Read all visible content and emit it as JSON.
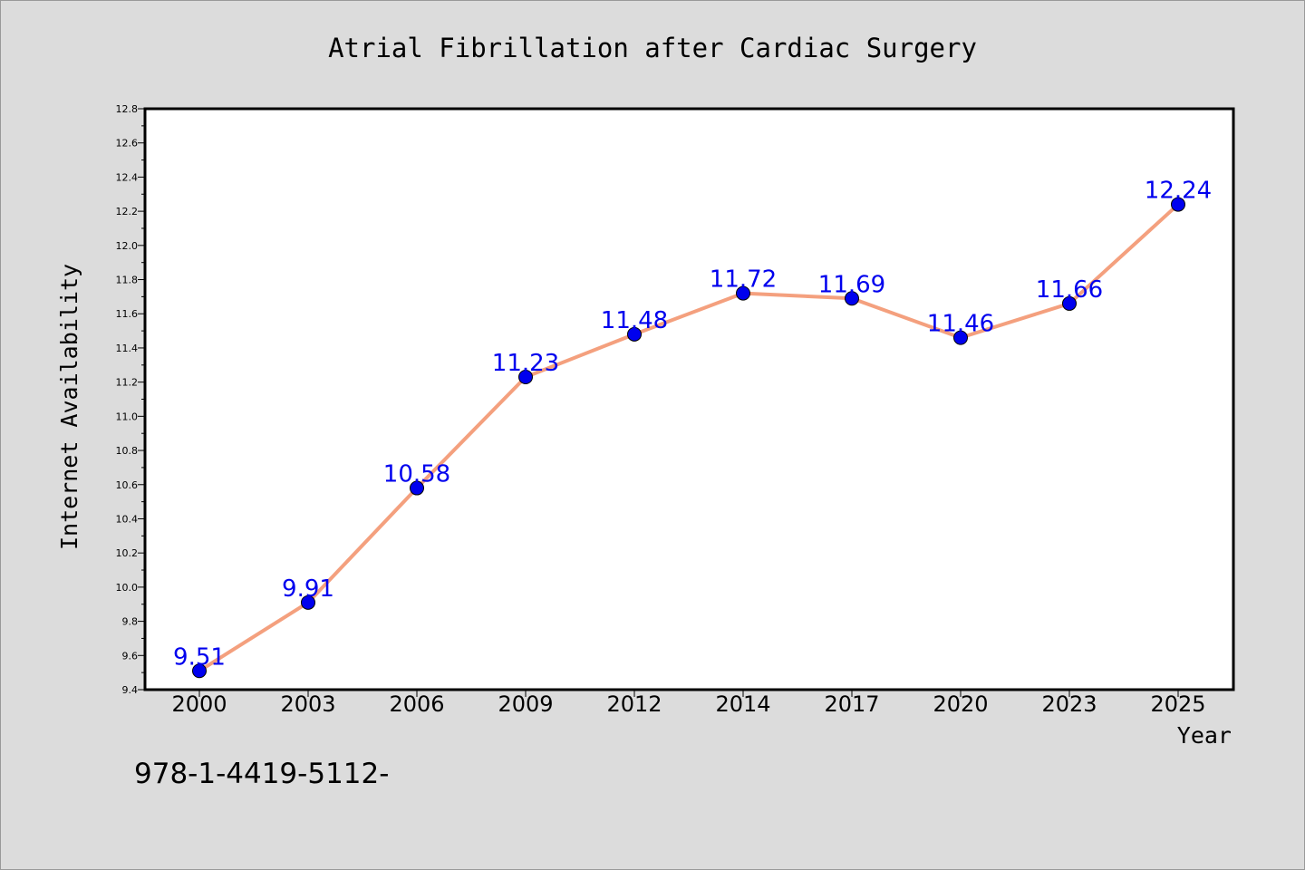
{
  "chart_data": {
    "type": "line",
    "title": "Atrial Fibrillation after Cardiac Surgery",
    "xlabel": "Year",
    "ylabel": "Internet Availability",
    "categories": [
      "2000",
      "2003",
      "2006",
      "2009",
      "2012",
      "2014",
      "2017",
      "2020",
      "2023",
      "2025"
    ],
    "series": [
      {
        "values": [
          9.51,
          9.91,
          10.58,
          11.23,
          11.48,
          11.72,
          11.69,
          11.46,
          11.66,
          12.24
        ],
        "line_color": "#f4a07e",
        "marker_color": "#0000ee",
        "label_color": "#0000ee"
      }
    ],
    "data_labels": [
      "9.51",
      "9.91",
      "10.58",
      "11.23",
      "11.48",
      "11.72",
      "11.69",
      "11.46",
      "11.66",
      "12.24"
    ],
    "ylim": [
      9.4,
      12.8
    ],
    "yticks": [
      "9.4",
      "9.6",
      "9.8",
      "10.0",
      "10.2",
      "10.4",
      "10.6",
      "10.8",
      "11.0",
      "11.2",
      "11.4",
      "11.6",
      "11.8",
      "12.0",
      "12.2",
      "12.4",
      "12.6",
      "12.8"
    ],
    "grid": false,
    "legend": "none",
    "background": "#dcdcdc",
    "plot_background": "#ffffff"
  },
  "footer": {
    "text": "978-1-4419-5112-"
  }
}
